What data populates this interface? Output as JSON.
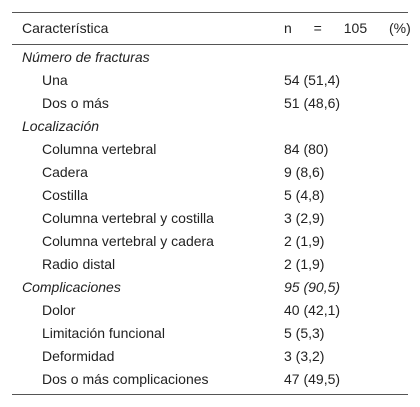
{
  "table": {
    "header": [
      "Característica",
      "n = 105 (%)"
    ],
    "sections": [
      {
        "label": "Número de fracturas",
        "rows": [
          {
            "label": "Una",
            "value": "54 (51,4)"
          },
          {
            "label": "Dos o más",
            "value": "51 (48,6)"
          }
        ]
      },
      {
        "label": "Localización",
        "rows": [
          {
            "label": "Columna vertebral",
            "value": "84 (80)"
          },
          {
            "label": "Cadera",
            "value": "9 (8,6)"
          },
          {
            "label": "Costilla",
            "value": "5 (4,8)"
          },
          {
            "label": "Columna vertebral y costilla",
            "value": "3 (2,9)"
          },
          {
            "label": "Columna vertebral y cadera",
            "value": "2 (1,9)"
          },
          {
            "label": "Radio distal",
            "value": "2 (1,9)"
          }
        ]
      },
      {
        "label": "Complicaciones",
        "value": "95 (90,5)",
        "rows": [
          {
            "label": "Dolor",
            "value": "40 (42,1)"
          },
          {
            "label": "Limitación funcional",
            "value": "5 (5,3)"
          },
          {
            "label": "Deformidad",
            "value": "3 (3,2)"
          },
          {
            "label": "Dos o más complicaciones",
            "value": "47 (49,5)"
          }
        ]
      }
    ]
  }
}
